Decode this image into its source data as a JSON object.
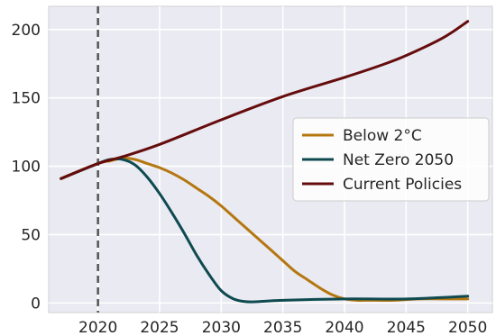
{
  "chart_data": {
    "type": "line",
    "title": "",
    "xlabel": "",
    "ylabel": "",
    "xlim": [
      2016,
      2052
    ],
    "ylim": [
      -7,
      217
    ],
    "xticks": [
      2020,
      2025,
      2030,
      2035,
      2040,
      2045,
      2050
    ],
    "yticks": [
      0,
      50,
      100,
      150,
      200
    ],
    "grid": true,
    "legend_position": "center-right",
    "reference_line": {
      "x": 2020,
      "style": "dashed",
      "color": "#555555"
    },
    "series": [
      {
        "name": "Below 2°C",
        "color": "#b5770f",
        "x": [
          2017,
          2020,
          2021,
          2022,
          2023,
          2024,
          2025,
          2026,
          2027,
          2028,
          2029,
          2030,
          2031,
          2032,
          2033,
          2034,
          2035,
          2036,
          2037,
          2038,
          2039,
          2040,
          2041,
          2042,
          2044,
          2046,
          2048,
          2050
        ],
        "values": [
          91,
          102,
          104,
          106,
          105,
          102,
          99,
          95,
          90,
          84,
          78,
          71,
          63,
          55,
          47,
          39,
          31,
          23,
          17,
          11,
          6,
          3,
          2,
          2,
          2,
          3,
          3,
          3
        ]
      },
      {
        "name": "Net Zero 2050",
        "color": "#0e4a4f",
        "x": [
          2017,
          2020,
          2021,
          2022,
          2023,
          2024,
          2025,
          2026,
          2027,
          2028,
          2029,
          2030,
          2031,
          2032,
          2033,
          2035,
          2040,
          2045,
          2050
        ],
        "values": [
          91,
          102,
          105,
          105,
          101,
          92,
          80,
          66,
          51,
          35,
          21,
          9,
          3,
          1,
          1,
          2,
          3,
          3,
          5
        ]
      },
      {
        "name": "Current Policies",
        "color": "#650c0c",
        "x": [
          2017,
          2020,
          2022,
          2025,
          2030,
          2035,
          2040,
          2043,
          2045,
          2048,
          2050
        ],
        "values": [
          91,
          102,
          107,
          116,
          134,
          151,
          165,
          174,
          181,
          194,
          206
        ]
      }
    ]
  }
}
